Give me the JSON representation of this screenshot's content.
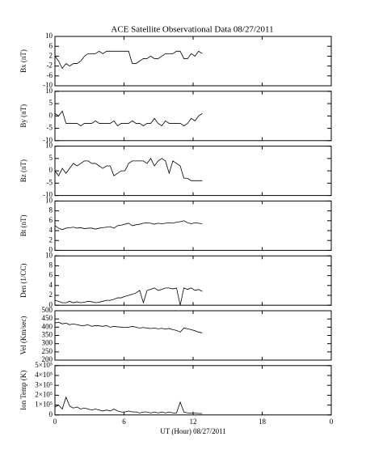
{
  "chart_data": [
    {
      "type": "line",
      "title": "ACE Satellite Observational Data   08/27/2011",
      "ylabel": "Bx (nT)",
      "x": [
        0,
        0.32,
        0.64,
        0.96,
        1.28,
        1.6,
        1.92,
        2.24,
        2.56,
        2.88,
        3.2,
        3.52,
        3.84,
        4.16,
        4.48,
        4.8,
        5.12,
        5.44,
        5.76,
        6.08,
        6.4,
        6.72,
        7.04,
        7.36,
        7.68,
        8,
        8.32,
        8.64,
        8.96,
        9.28,
        9.6,
        9.92,
        10.24,
        10.56,
        10.88,
        11.2,
        11.52,
        11.84,
        12.16,
        12.48,
        12.8
      ],
      "series": [
        {
          "color": "#000000",
          "values": [
            2,
            0,
            -3,
            -1,
            -2,
            -1,
            -1,
            0,
            2,
            3,
            3,
            3,
            4,
            3,
            4,
            4,
            4,
            4,
            4,
            4,
            4,
            -1,
            -1,
            0,
            1,
            1,
            2,
            1,
            1,
            2,
            3,
            3,
            3,
            4,
            4,
            1,
            1,
            3,
            2,
            4,
            3
          ]
        }
      ],
      "xlim": [
        0,
        24
      ],
      "xticks": [
        0,
        6,
        12,
        18,
        {
          "value": 24,
          "label": "0"
        }
      ],
      "ylim": [
        -10,
        10
      ],
      "yticks": [
        -10,
        -6,
        -2,
        2,
        6,
        10
      ]
    },
    {
      "type": "line",
      "ylabel": "By (nT)",
      "x": [
        0,
        0.32,
        0.64,
        0.96,
        1.28,
        1.6,
        1.92,
        2.24,
        2.56,
        2.88,
        3.2,
        3.52,
        3.84,
        4.16,
        4.48,
        4.8,
        5.12,
        5.44,
        5.76,
        6.08,
        6.4,
        6.72,
        7.04,
        7.36,
        7.68,
        8,
        8.32,
        8.64,
        8.96,
        9.28,
        9.6,
        9.92,
        10.24,
        10.56,
        10.88,
        11.2,
        11.52,
        11.84,
        12.16,
        12.48,
        12.8
      ],
      "series": [
        {
          "color": "#000000",
          "values": [
            1,
            0,
            2,
            -3,
            -3,
            -3,
            -3,
            -4,
            -3,
            -3,
            -3,
            -2,
            -3,
            -3,
            -3,
            -3,
            -2,
            -4,
            -3,
            -3,
            -3,
            -2,
            -3,
            -3,
            -4,
            -3,
            -3,
            -1,
            -3,
            -4,
            -2,
            -3,
            -3,
            -3,
            -3,
            -4,
            -3,
            -1,
            -2,
            0,
            1
          ]
        }
      ],
      "xlim": [
        0,
        24
      ],
      "xticks": [
        0,
        6,
        12,
        18,
        {
          "value": 24,
          "label": "0"
        }
      ],
      "ylim": [
        -10,
        10
      ],
      "yticks": [
        -10,
        -5,
        0,
        5,
        10
      ]
    },
    {
      "type": "line",
      "ylabel": "Bz (nT)",
      "x": [
        0,
        0.32,
        0.64,
        0.96,
        1.28,
        1.6,
        1.92,
        2.24,
        2.56,
        2.88,
        3.2,
        3.52,
        3.84,
        4.16,
        4.48,
        4.8,
        5.12,
        5.44,
        5.76,
        6.08,
        6.4,
        6.72,
        7.04,
        7.36,
        7.68,
        8,
        8.32,
        8.64,
        8.96,
        9.28,
        9.6,
        9.92,
        10.24,
        10.56,
        10.88,
        11.2,
        11.52,
        11.84,
        12.16,
        12.48,
        12.8
      ],
      "series": [
        {
          "color": "#000000",
          "values": [
            0,
            -2,
            1,
            -1,
            1,
            3,
            2,
            3,
            4,
            4,
            3,
            3,
            2,
            1,
            2,
            2,
            -2,
            -1,
            0,
            0,
            3,
            4,
            4,
            4,
            4,
            3,
            5,
            2,
            4,
            5,
            4,
            -1,
            4,
            3,
            2,
            -3,
            -3,
            -4,
            -4,
            -4,
            -4
          ]
        }
      ],
      "xlim": [
        0,
        24
      ],
      "xticks": [
        0,
        6,
        12,
        18,
        {
          "value": 24,
          "label": "0"
        }
      ],
      "ylim": [
        -10,
        10
      ],
      "yticks": [
        -10,
        -5,
        0,
        5,
        10
      ]
    },
    {
      "type": "line",
      "ylabel": "Bt (nT)",
      "x": [
        0,
        0.32,
        0.64,
        0.96,
        1.28,
        1.6,
        1.92,
        2.24,
        2.56,
        2.88,
        3.2,
        3.52,
        3.84,
        4.16,
        4.48,
        4.8,
        5.12,
        5.44,
        5.76,
        6.08,
        6.4,
        6.72,
        7.04,
        7.36,
        7.68,
        8,
        8.32,
        8.64,
        8.96,
        9.28,
        9.6,
        9.92,
        10.24,
        10.56,
        10.88,
        11.2,
        11.52,
        11.84,
        12.16,
        12.48,
        12.8
      ],
      "series": [
        {
          "color": "#000000",
          "values": [
            5,
            4.5,
            4.2,
            4.5,
            4.6,
            4.7,
            4.5,
            4.6,
            4.4,
            4.5,
            4.5,
            4.3,
            4.5,
            4.6,
            4.7,
            4.8,
            4.5,
            5,
            5.1,
            5.3,
            5.5,
            5,
            5.2,
            5.3,
            5.5,
            5.6,
            5.5,
            5.3,
            5.5,
            5.4,
            5.5,
            5.6,
            5.5,
            5.7,
            5.8,
            6,
            5.6,
            5.4,
            5.6,
            5.5,
            5.4
          ]
        }
      ],
      "xlim": [
        0,
        24
      ],
      "xticks": [
        0,
        6,
        12,
        18,
        {
          "value": 24,
          "label": "0"
        }
      ],
      "ylim": [
        0,
        10
      ],
      "yticks": [
        0,
        2,
        4,
        6,
        8,
        10
      ]
    },
    {
      "type": "line",
      "ylabel": "Den (1/CC)",
      "x": [
        0,
        0.32,
        0.64,
        0.96,
        1.28,
        1.6,
        1.92,
        2.24,
        2.56,
        2.88,
        3.2,
        3.52,
        3.84,
        4.16,
        4.48,
        4.8,
        5.12,
        5.44,
        5.76,
        6.08,
        6.4,
        6.72,
        7.04,
        7.36,
        7.68,
        8,
        8.32,
        8.64,
        8.96,
        9.28,
        9.6,
        9.92,
        10.24,
        10.56,
        10.88,
        11.2,
        11.52,
        11.84,
        12.16,
        12.48,
        12.8
      ],
      "series": [
        {
          "color": "#000000",
          "values": [
            1,
            0.8,
            0.5,
            0.5,
            0.8,
            0.5,
            0.7,
            0.5,
            0.6,
            0.8,
            0.7,
            0.5,
            0.6,
            0.8,
            1,
            1,
            1.2,
            1.5,
            1.5,
            1.8,
            2,
            2.2,
            2.5,
            3,
            0.5,
            3,
            3.2,
            3.5,
            3,
            3.2,
            3.5,
            3.5,
            3.3,
            3.5,
            0,
            3.5,
            3.2,
            3.5,
            3,
            3.2,
            2.8
          ]
        }
      ],
      "xlim": [
        0,
        24
      ],
      "xticks": [
        0,
        6,
        12,
        18,
        {
          "value": 24,
          "label": "0"
        }
      ],
      "ylim": [
        0,
        10
      ],
      "yticks": [
        0,
        2,
        4,
        6,
        8,
        10
      ]
    },
    {
      "type": "line",
      "ylabel": "Vel (Km/sec)",
      "x": [
        0,
        0.32,
        0.64,
        0.96,
        1.28,
        1.6,
        1.92,
        2.24,
        2.56,
        2.88,
        3.2,
        3.52,
        3.84,
        4.16,
        4.48,
        4.8,
        5.12,
        5.44,
        5.76,
        6.08,
        6.4,
        6.72,
        7.04,
        7.36,
        7.68,
        8,
        8.32,
        8.64,
        8.96,
        9.28,
        9.6,
        9.92,
        10.24,
        10.56,
        10.88,
        11.2,
        11.52,
        11.84,
        12.16,
        12.48,
        12.8
      ],
      "series": [
        {
          "color": "#000000",
          "values": [
            425,
            430,
            420,
            425,
            415,
            420,
            415,
            410,
            410,
            415,
            405,
            410,
            408,
            405,
            410,
            400,
            405,
            402,
            400,
            398,
            400,
            405,
            400,
            395,
            398,
            395,
            392,
            395,
            390,
            393,
            388,
            392,
            385,
            380,
            370,
            395,
            390,
            385,
            378,
            370,
            365
          ]
        }
      ],
      "xlim": [
        0,
        24
      ],
      "xticks": [
        0,
        6,
        12,
        18,
        {
          "value": 24,
          "label": "0"
        }
      ],
      "ylim": [
        200,
        500
      ],
      "yticks": [
        200,
        250,
        300,
        350,
        400,
        450,
        500
      ]
    },
    {
      "type": "line",
      "ylabel": "Ion Temp (K)",
      "xlabel": "UT (Hour)   08/27/2011",
      "x": [
        0,
        0.32,
        0.64,
        0.96,
        1.28,
        1.6,
        1.92,
        2.24,
        2.56,
        2.88,
        3.2,
        3.52,
        3.84,
        4.16,
        4.48,
        4.8,
        5.12,
        5.44,
        5.76,
        6.08,
        6.4,
        6.72,
        7.04,
        7.36,
        7.68,
        8,
        8.32,
        8.64,
        8.96,
        9.28,
        9.6,
        9.92,
        10.24,
        10.56,
        10.88,
        11.2,
        11.52,
        11.84,
        12.16,
        12.48,
        12.8
      ],
      "series": [
        {
          "color": "#000000",
          "values": [
            80000,
            100000,
            60000,
            180000,
            90000,
            70000,
            80000,
            60000,
            70000,
            60000,
            50000,
            60000,
            50000,
            40000,
            50000,
            40000,
            60000,
            40000,
            30000,
            30000,
            40000,
            30000,
            30000,
            20000,
            30000,
            30000,
            20000,
            30000,
            20000,
            30000,
            20000,
            30000,
            20000,
            20000,
            130000,
            30000,
            20000,
            20000,
            20000,
            15000,
            15000
          ]
        }
      ],
      "xlim": [
        0,
        24
      ],
      "xticks": [
        0,
        6,
        12,
        18,
        {
          "value": 24,
          "label": "0"
        }
      ],
      "ylim": [
        0,
        500000
      ],
      "yticks": [
        0,
        {
          "value": 100000,
          "label": "1×10⁵"
        },
        {
          "value": 200000,
          "label": "2×10⁵"
        },
        {
          "value": 300000,
          "label": "3×10⁵"
        },
        {
          "value": 400000,
          "label": "4×10⁵"
        },
        {
          "value": 500000,
          "label": "5×10⁵"
        }
      ]
    }
  ]
}
